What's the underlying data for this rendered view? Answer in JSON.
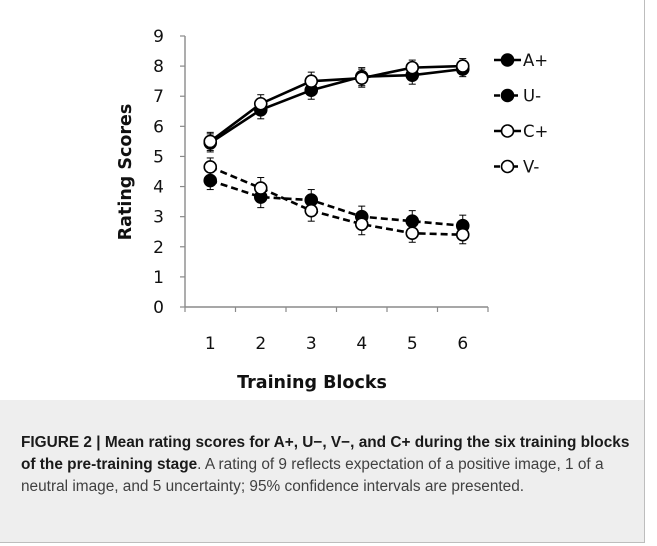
{
  "chart_data": {
    "type": "line",
    "xlabel": "Training Blocks",
    "ylabel": "Rating Scores",
    "x": [
      1,
      2,
      3,
      4,
      5,
      6
    ],
    "xticks": [
      "1",
      "2",
      "3",
      "4",
      "5",
      "6"
    ],
    "yticks": [
      "0",
      "1",
      "2",
      "3",
      "4",
      "5",
      "6",
      "7",
      "8",
      "9"
    ],
    "ylim": [
      0,
      9
    ],
    "legend_position": "right",
    "grid": false,
    "series": [
      {
        "name": "A+",
        "values": [
          5.45,
          6.55,
          7.2,
          7.65,
          7.7,
          7.9
        ],
        "error": [
          0.3,
          0.3,
          0.3,
          0.3,
          0.3,
          0.25
        ],
        "marker": "filled",
        "line": "solid"
      },
      {
        "name": "U-",
        "values": [
          4.2,
          3.65,
          3.55,
          3.0,
          2.85,
          2.7
        ],
        "error": [
          0.3,
          0.35,
          0.35,
          0.35,
          0.35,
          0.35
        ],
        "marker": "filled",
        "line": "dashed"
      },
      {
        "name": "C+",
        "values": [
          5.5,
          6.75,
          7.5,
          7.6,
          7.95,
          8.0
        ],
        "error": [
          0.3,
          0.3,
          0.3,
          0.3,
          0.25,
          0.25
        ],
        "marker": "open",
        "line": "solid"
      },
      {
        "name": "V-",
        "values": [
          4.65,
          3.95,
          3.2,
          2.75,
          2.45,
          2.4
        ],
        "error": [
          0.3,
          0.35,
          0.35,
          0.35,
          0.3,
          0.3
        ],
        "marker": "open",
        "line": "dashed"
      }
    ]
  },
  "caption": {
    "lead": "FIGURE 2 | Mean rating scores for A+, U−, V−, and C+ during the six training blocks of the pre-training stage",
    "rest": ". A rating of 9 reflects expectation of a positive image, 1 of a neutral image, and 5 uncertainty; 95% confidence intervals are presented."
  }
}
